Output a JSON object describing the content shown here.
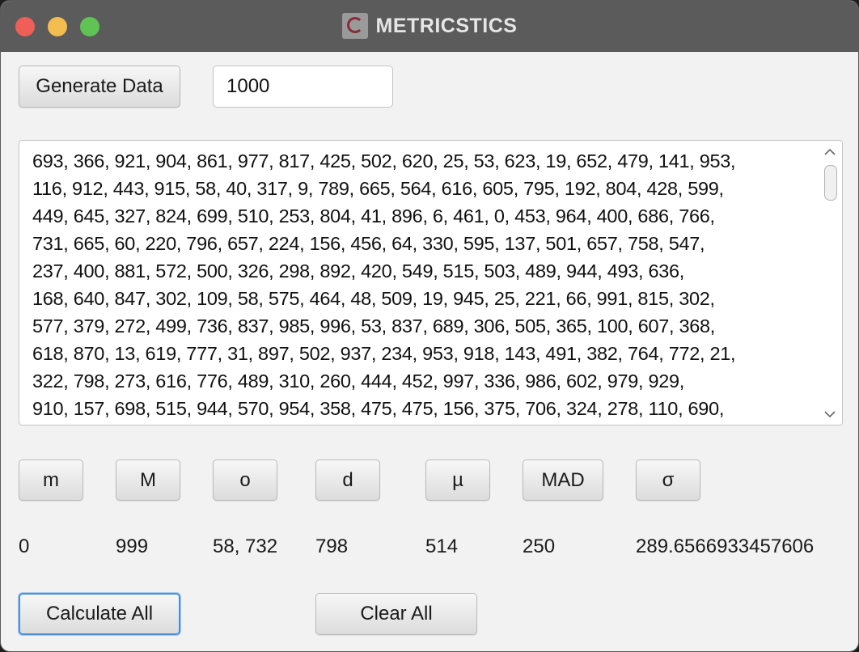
{
  "window": {
    "title": "METRICSTICS",
    "traffic_lights": {
      "close": "#ee5f57",
      "minimize": "#f4bd4f",
      "maximize": "#5fc454"
    }
  },
  "toolbar": {
    "generate_label": "Generate Data",
    "count_value": "1000"
  },
  "data_area": {
    "text": "693, 366, 921, 904, 861, 977, 817, 425, 502, 620, 25, 53, 623, 19, 652, 479, 141, 953,\n116, 912, 443, 915, 58, 40, 317, 9, 789, 665, 564, 616, 605, 795, 192, 804, 428, 599,\n449, 645, 327, 824, 699, 510, 253, 804, 41, 896, 6, 461, 0, 453, 964, 400, 686, 766,\n731, 665, 60, 220, 796, 657, 224, 156, 456, 64, 330, 595, 137, 501, 657, 758, 547,\n237, 400, 881, 572, 500, 326, 298, 892, 420, 549, 515, 503, 489, 944, 493, 636,\n168, 640, 847, 302, 109, 58, 575, 464, 48, 509, 19, 945, 25, 221, 66, 991, 815, 302,\n577, 379, 272, 499, 736, 837, 985, 996, 53, 837, 689, 306, 505, 365, 100, 607, 368,\n618, 870, 13, 619, 777, 31, 897, 502, 937, 234, 953, 918, 143, 491, 382, 764, 772, 21,\n322, 798, 273, 616, 776, 489, 310, 260, 444, 452, 997, 336, 986, 602, 979, 929,\n910, 157, 698, 515, 944, 570, 954, 358, 475, 475, 156, 375, 706, 324, 278, 110, 690,",
    "scroll_up_icon": "chevron-up",
    "scroll_down_icon": "chevron-down"
  },
  "stats": {
    "min": {
      "label": "m",
      "value": "0"
    },
    "max": {
      "label": "M",
      "value": "999"
    },
    "mode": {
      "label": "o",
      "value": "58, 732"
    },
    "median": {
      "label": "d",
      "value": "798"
    },
    "mean": {
      "label": "µ",
      "value": "514"
    },
    "mad": {
      "label": "MAD",
      "value": "250"
    },
    "std": {
      "label": "σ",
      "value": "289.6566933457606"
    }
  },
  "actions": {
    "calculate_label": "Calculate All",
    "clear_label": "Clear All"
  }
}
